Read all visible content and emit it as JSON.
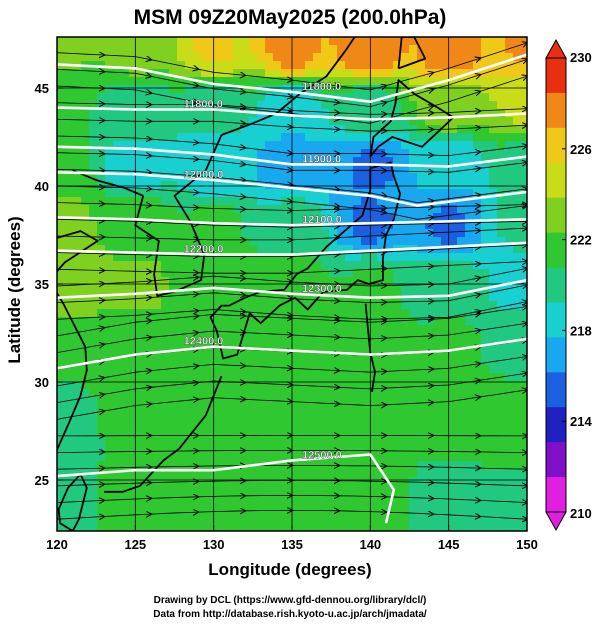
{
  "title": "MSM 09Z20May2025 (200.0hPa)",
  "xlabel": "Longitude (degrees)",
  "ylabel": "Latitude  (degrees)",
  "footer": {
    "line1": "Drawing by DCL (https://www.gfd-dennou.org/library/dcl/)",
    "line2": "Data from http://database.rish.kyoto-u.ac.jp/arch/jmadata/"
  },
  "chart_data": {
    "type": "heatmap",
    "title": "MSM 09Z20May2025 (200.0hPa)",
    "xlabel": "Longitude (degrees)",
    "ylabel": "Latitude  (degrees)",
    "xlim": [
      120,
      150
    ],
    "ylim": [
      22.4,
      47.6
    ],
    "x_ticks": [
      120,
      125,
      130,
      135,
      140,
      145,
      150
    ],
    "y_ticks": [
      25,
      30,
      35,
      40,
      45
    ],
    "colorbar": {
      "min": 210,
      "max": 230,
      "ticks": [
        210,
        214,
        218,
        222,
        226,
        230
      ],
      "colors": [
        "#e020e0",
        "#8010c8",
        "#2020c0",
        "#1a60e0",
        "#18a8f0",
        "#18d0d0",
        "#20c880",
        "#30c830",
        "#80d020",
        "#c8dc18",
        "#f0c818",
        "#f08818",
        "#e83010"
      ]
    },
    "contours": [
      {
        "label": "11800.0",
        "points": [
          [
            120,
            46.2
          ],
          [
            125,
            46.0
          ],
          [
            130,
            45.2
          ],
          [
            135,
            44.8
          ],
          [
            140,
            44.3
          ],
          [
            145,
            45.4
          ],
          [
            150,
            46.7
          ]
        ]
      },
      {
        "label": "11800.0",
        "points": [
          [
            120,
            44.0
          ],
          [
            125,
            43.9
          ],
          [
            130,
            43.9
          ],
          [
            135,
            43.6
          ],
          [
            140,
            43.4
          ],
          [
            145,
            43.5
          ],
          [
            150,
            43.7
          ]
        ]
      },
      {
        "label": "11900.0",
        "points": [
          [
            120,
            42.0
          ],
          [
            125,
            41.9
          ],
          [
            130,
            41.6
          ],
          [
            135,
            41.1
          ],
          [
            140,
            41.1
          ],
          [
            145,
            41.0
          ],
          [
            150,
            41.5
          ]
        ]
      },
      {
        "label": "12000.0",
        "points": [
          [
            120,
            40.7
          ],
          [
            125,
            40.6
          ],
          [
            130,
            40.3
          ],
          [
            135,
            39.9
          ],
          [
            140,
            39.5
          ],
          [
            143,
            39.0
          ],
          [
            150,
            39.7
          ]
        ]
      },
      {
        "label": "12100.0",
        "points": [
          [
            120,
            38.4
          ],
          [
            125,
            38.3
          ],
          [
            130,
            38.1
          ],
          [
            135,
            38.0
          ],
          [
            140,
            38.1
          ],
          [
            145,
            38.2
          ],
          [
            150,
            38.3
          ]
        ]
      },
      {
        "label": "12200.0",
        "points": [
          [
            120,
            36.7
          ],
          [
            125,
            36.6
          ],
          [
            130,
            36.5
          ],
          [
            135,
            36.5
          ],
          [
            140,
            36.7
          ],
          [
            145,
            36.9
          ],
          [
            150,
            37.1
          ]
        ]
      },
      {
        "label": "12300.0",
        "points": [
          [
            120,
            34.3
          ],
          [
            125,
            34.5
          ],
          [
            130,
            34.8
          ],
          [
            135,
            34.5
          ],
          [
            140,
            34.3
          ],
          [
            145,
            34.4
          ],
          [
            150,
            35.2
          ]
        ]
      },
      {
        "label": "12400.0",
        "points": [
          [
            120,
            30.7
          ],
          [
            125,
            31.4
          ],
          [
            130,
            31.8
          ],
          [
            135,
            31.6
          ],
          [
            140,
            31.4
          ],
          [
            145,
            31.6
          ],
          [
            150,
            32.2
          ]
        ]
      },
      {
        "label": "12500.0",
        "points": [
          [
            120,
            25.2
          ],
          [
            125,
            25.5
          ],
          [
            130,
            25.5
          ],
          [
            135,
            26.0
          ],
          [
            140,
            26.3
          ],
          [
            141.5,
            24.5
          ],
          [
            141.0,
            22.8
          ]
        ]
      }
    ],
    "field": [
      {
        "lon": 120,
        "lat": 47,
        "v": 222.5
      },
      {
        "lon": 125,
        "lat": 47,
        "v": 223.0
      },
      {
        "lon": 130,
        "lat": 47,
        "v": 225.5
      },
      {
        "lon": 135,
        "lat": 47,
        "v": 227.5
      },
      {
        "lon": 140,
        "lat": 47,
        "v": 228.0
      },
      {
        "lon": 145,
        "lat": 47,
        "v": 227.5
      },
      {
        "lon": 150,
        "lat": 47,
        "v": 227.0
      },
      {
        "lon": 120,
        "lat": 44,
        "v": 221.0
      },
      {
        "lon": 125,
        "lat": 44,
        "v": 220.0
      },
      {
        "lon": 130,
        "lat": 44,
        "v": 219.5
      },
      {
        "lon": 135,
        "lat": 44,
        "v": 218.5
      },
      {
        "lon": 140,
        "lat": 44,
        "v": 220.0
      },
      {
        "lon": 145,
        "lat": 44,
        "v": 223.0
      },
      {
        "lon": 150,
        "lat": 44,
        "v": 224.0
      },
      {
        "lon": 120,
        "lat": 41,
        "v": 221.5
      },
      {
        "lon": 125,
        "lat": 41,
        "v": 218.5
      },
      {
        "lon": 130,
        "lat": 41,
        "v": 218.0
      },
      {
        "lon": 135,
        "lat": 41,
        "v": 216.5
      },
      {
        "lon": 140,
        "lat": 41,
        "v": 216.0
      },
      {
        "lon": 145,
        "lat": 41,
        "v": 218.0
      },
      {
        "lon": 150,
        "lat": 41,
        "v": 220.0
      },
      {
        "lon": 120,
        "lat": 38,
        "v": 223.0
      },
      {
        "lon": 125,
        "lat": 38,
        "v": 222.0
      },
      {
        "lon": 130,
        "lat": 38,
        "v": 221.0
      },
      {
        "lon": 135,
        "lat": 38,
        "v": 220.0
      },
      {
        "lon": 140,
        "lat": 38,
        "v": 216.0
      },
      {
        "lon": 145,
        "lat": 38,
        "v": 216.0
      },
      {
        "lon": 150,
        "lat": 38,
        "v": 219.5
      },
      {
        "lon": 120,
        "lat": 35,
        "v": 223.5
      },
      {
        "lon": 125,
        "lat": 35,
        "v": 222.5
      },
      {
        "lon": 130,
        "lat": 35,
        "v": 222.0
      },
      {
        "lon": 135,
        "lat": 35,
        "v": 221.5
      },
      {
        "lon": 140,
        "lat": 35,
        "v": 221.0
      },
      {
        "lon": 145,
        "lat": 35,
        "v": 220.0
      },
      {
        "lon": 150,
        "lat": 35,
        "v": 218.5
      },
      {
        "lon": 120,
        "lat": 32,
        "v": 221.5
      },
      {
        "lon": 125,
        "lat": 32,
        "v": 222.0
      },
      {
        "lon": 130,
        "lat": 32,
        "v": 222.0
      },
      {
        "lon": 135,
        "lat": 32,
        "v": 222.0
      },
      {
        "lon": 140,
        "lat": 32,
        "v": 221.5
      },
      {
        "lon": 145,
        "lat": 32,
        "v": 221.0
      },
      {
        "lon": 150,
        "lat": 32,
        "v": 220.5
      },
      {
        "lon": 120,
        "lat": 28,
        "v": 220.0
      },
      {
        "lon": 125,
        "lat": 28,
        "v": 221.0
      },
      {
        "lon": 130,
        "lat": 28,
        "v": 221.5
      },
      {
        "lon": 135,
        "lat": 28,
        "v": 221.5
      },
      {
        "lon": 140,
        "lat": 28,
        "v": 221.0
      },
      {
        "lon": 145,
        "lat": 28,
        "v": 221.0
      },
      {
        "lon": 150,
        "lat": 28,
        "v": 221.5
      },
      {
        "lon": 120,
        "lat": 24,
        "v": 220.5
      },
      {
        "lon": 125,
        "lat": 24,
        "v": 221.0
      },
      {
        "lon": 130,
        "lat": 24,
        "v": 221.0
      },
      {
        "lon": 135,
        "lat": 24,
        "v": 221.0
      },
      {
        "lon": 140,
        "lat": 24,
        "v": 221.0
      },
      {
        "lon": 145,
        "lat": 24,
        "v": 220.5
      },
      {
        "lon": 150,
        "lat": 24,
        "v": 220.5
      }
    ],
    "coastlines": [
      {
        "name": "japan-main",
        "points": [
          [
            131.0,
            33.9
          ],
          [
            132.0,
            34.3
          ],
          [
            133.0,
            34.6
          ],
          [
            134.5,
            34.7
          ],
          [
            135.3,
            35.5
          ],
          [
            136.0,
            35.8
          ],
          [
            137.2,
            36.9
          ],
          [
            138.5,
            37.8
          ],
          [
            139.5,
            38.5
          ],
          [
            140.0,
            39.8
          ],
          [
            140.0,
            40.9
          ],
          [
            141.3,
            41.2
          ],
          [
            141.5,
            40.5
          ],
          [
            141.9,
            39.6
          ],
          [
            141.5,
            38.3
          ],
          [
            141.0,
            37.5
          ],
          [
            140.8,
            36.3
          ],
          [
            140.8,
            35.2
          ],
          [
            139.9,
            35.0
          ],
          [
            139.2,
            35.2
          ],
          [
            138.5,
            34.7
          ],
          [
            137.0,
            34.6
          ],
          [
            136.0,
            33.7
          ],
          [
            135.2,
            34.3
          ],
          [
            134.2,
            33.9
          ],
          [
            133.0,
            33.0
          ],
          [
            132.3,
            33.5
          ],
          [
            131.5,
            31.4
          ],
          [
            130.6,
            31.2
          ],
          [
            130.2,
            32.6
          ],
          [
            129.8,
            33.3
          ],
          [
            130.5,
            33.9
          ],
          [
            131.0,
            33.9
          ]
        ]
      },
      {
        "name": "hokkaido",
        "points": [
          [
            140.0,
            41.5
          ],
          [
            140.2,
            42.5
          ],
          [
            141.3,
            43.3
          ],
          [
            141.6,
            44.2
          ],
          [
            141.8,
            45.4
          ],
          [
            142.8,
            44.7
          ],
          [
            144.3,
            44.0
          ],
          [
            145.3,
            43.5
          ],
          [
            143.3,
            42.0
          ],
          [
            141.4,
            42.5
          ],
          [
            140.5,
            42.0
          ],
          [
            140.0,
            41.5
          ]
        ]
      },
      {
        "name": "sakhalin",
        "points": [
          [
            141.8,
            46.0
          ],
          [
            142.0,
            47.6
          ],
          [
            142.8,
            47.6
          ],
          [
            143.5,
            46.5
          ],
          [
            142.5,
            46.2
          ],
          [
            141.8,
            46.0
          ]
        ]
      },
      {
        "name": "korea",
        "points": [
          [
            125.5,
            39.5
          ],
          [
            125.0,
            38.0
          ],
          [
            126.5,
            37.2
          ],
          [
            126.2,
            35.5
          ],
          [
            126.4,
            34.4
          ],
          [
            127.5,
            34.6
          ],
          [
            129.2,
            35.2
          ],
          [
            129.4,
            36.5
          ],
          [
            128.5,
            38.2
          ],
          [
            127.5,
            39.5
          ],
          [
            129.5,
            40.8
          ],
          [
            130.5,
            42.6
          ]
        ]
      },
      {
        "name": "asia-coast",
        "points": [
          [
            130.5,
            42.6
          ],
          [
            132.5,
            43.2
          ],
          [
            134.0,
            43.7
          ],
          [
            135.5,
            44.7
          ],
          [
            137.2,
            45.6
          ],
          [
            138.5,
            47.0
          ],
          [
            139.0,
            47.6
          ]
        ]
      },
      {
        "name": "china-coast",
        "points": [
          [
            121.0,
            40.8
          ],
          [
            122.5,
            40.3
          ],
          [
            124.3,
            39.9
          ],
          [
            125.5,
            39.5
          ]
        ]
      },
      {
        "name": "shandong",
        "points": [
          [
            119.8,
            37.3
          ],
          [
            121.5,
            37.7
          ],
          [
            122.6,
            37.2
          ],
          [
            120.5,
            36.1
          ],
          [
            119.5,
            35.2
          ],
          [
            120.4,
            34.0
          ],
          [
            121.8,
            31.8
          ],
          [
            121.9,
            30.6
          ],
          [
            121.5,
            29.3
          ],
          [
            120.7,
            27.8
          ],
          [
            119.7,
            26.0
          ],
          [
            119.0,
            25.0
          ]
        ]
      },
      {
        "name": "taiwan",
        "points": [
          [
            121.5,
            25.3
          ],
          [
            121.9,
            24.6
          ],
          [
            121.4,
            23.0
          ],
          [
            121.0,
            22.4
          ],
          [
            120.2,
            22.8
          ],
          [
            120.1,
            23.5
          ],
          [
            120.7,
            24.6
          ],
          [
            121.5,
            25.3
          ]
        ]
      },
      {
        "name": "ryukyu",
        "points": [
          [
            130.5,
            30.3
          ],
          [
            129.5,
            28.3
          ],
          [
            127.8,
            26.6
          ],
          [
            126.8,
            26.0
          ],
          [
            125.3,
            24.7
          ],
          [
            124.2,
            24.4
          ],
          [
            123.0,
            24.4
          ]
        ]
      },
      {
        "name": "izu",
        "points": [
          [
            139.7,
            34.0
          ],
          [
            139.8,
            33.1
          ],
          [
            140.0,
            31.5
          ],
          [
            140.3,
            30.5
          ],
          [
            140.1,
            29.5
          ]
        ]
      }
    ],
    "grid": true,
    "streamlines": true
  }
}
